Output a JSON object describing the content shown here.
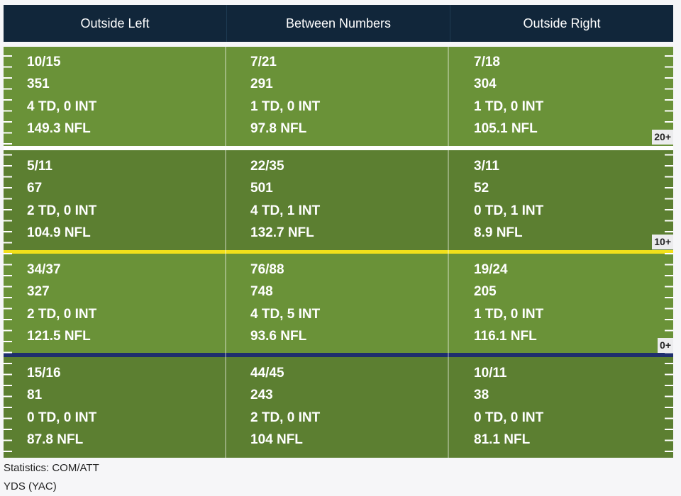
{
  "header": {
    "columns": [
      "Outside Left",
      "Between Numbers",
      "Outside Right"
    ]
  },
  "zones": {
    "badges": [
      "20+",
      "10+",
      "0+"
    ],
    "rows": [
      [
        [
          "10/15",
          "351",
          "4 TD, 0 INT",
          "149.3 NFL"
        ],
        [
          "7/21",
          "291",
          "1 TD, 0 INT",
          "97.8 NFL"
        ],
        [
          "7/18",
          "304",
          "1 TD, 0 INT",
          "105.1 NFL"
        ]
      ],
      [
        [
          "5/11",
          "67",
          "2 TD, 0 INT",
          "104.9 NFL"
        ],
        [
          "22/35",
          "501",
          "4 TD, 1 INT",
          "132.7 NFL"
        ],
        [
          "3/11",
          "52",
          "0 TD, 1 INT",
          "8.9 NFL"
        ]
      ],
      [
        [
          "34/37",
          "327",
          "2 TD, 0 INT",
          "121.5 NFL"
        ],
        [
          "76/88",
          "748",
          "4 TD, 5 INT",
          "93.6 NFL"
        ],
        [
          "19/24",
          "205",
          "1 TD, 0 INT",
          "116.1 NFL"
        ]
      ],
      [
        [
          "15/16",
          "81",
          "0 TD, 0 INT",
          "87.8 NFL"
        ],
        [
          "44/45",
          "243",
          "2 TD, 0 INT",
          "104 NFL"
        ],
        [
          "10/11",
          "38",
          "0 TD, 0 INT",
          "81.1 NFL"
        ]
      ]
    ]
  },
  "legend": {
    "line1": "Statistics: COM/ATT",
    "line2": "YDS (YAC)"
  },
  "colors": {
    "header_bg": "#11263a",
    "field_light": "#6a9238",
    "field_dark": "#5c7f31",
    "line_20": "#ffffff",
    "line_10": "#f2e01a",
    "line_0": "#1f2e6e"
  }
}
